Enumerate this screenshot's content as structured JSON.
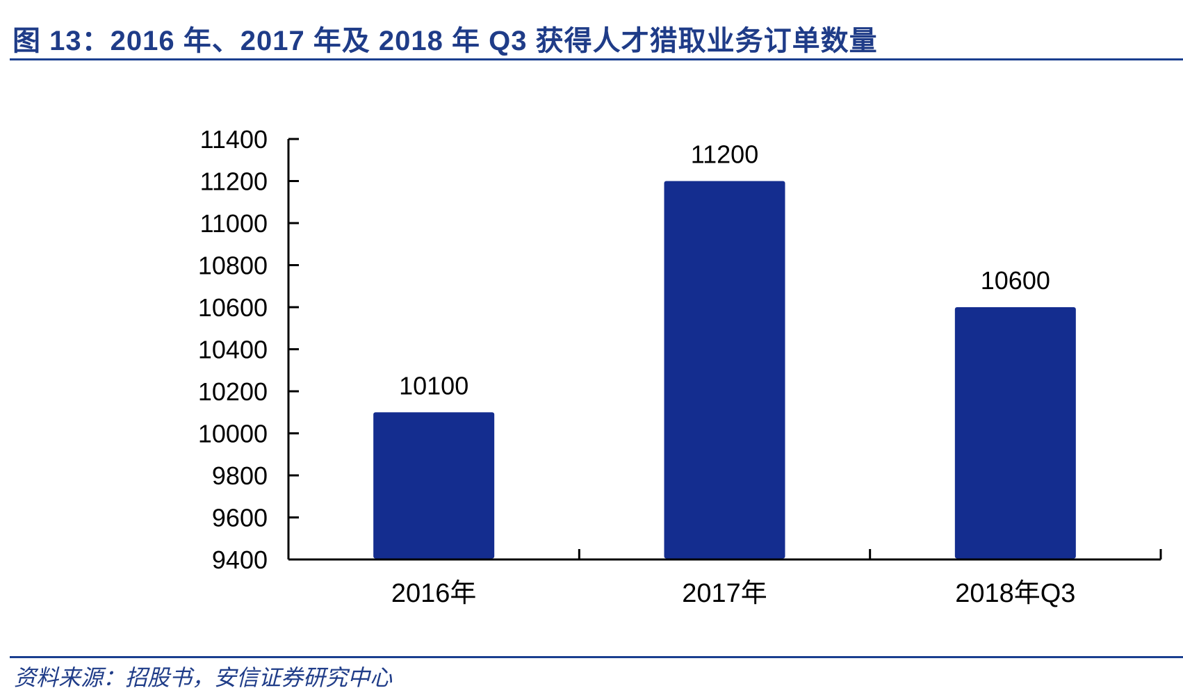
{
  "title": "图 13：2016 年、2017 年及 2018 年 Q3 获得人才猎取业务订单数量",
  "source": "资料来源：招股书，安信证券研究中心",
  "colors": {
    "bar": "#142d8f",
    "title": "#1f3c88",
    "rule": "#1a3f8f",
    "axis": "#000000"
  },
  "chart_data": {
    "type": "bar",
    "title": "2016 年、2017 年及 2018 年 Q3 获得人才猎取业务订单数量",
    "categories": [
      "2016年",
      "2017年",
      "2018年Q3"
    ],
    "values": [
      10100,
      11200,
      10600
    ],
    "data_labels": [
      "10100",
      "11200",
      "10600"
    ],
    "xlabel": "",
    "ylabel": "",
    "ylim": [
      9400,
      11400
    ],
    "yticks": [
      9400,
      9600,
      9800,
      10000,
      10200,
      10400,
      10600,
      10800,
      11000,
      11200,
      11400
    ],
    "ytick_labels": [
      "9400",
      "9600",
      "9800",
      "10000",
      "10200",
      "10400",
      "10600",
      "10800",
      "11000",
      "11200",
      "11400"
    ],
    "grid": false,
    "legend": null,
    "bar_color": "#142d8f"
  }
}
